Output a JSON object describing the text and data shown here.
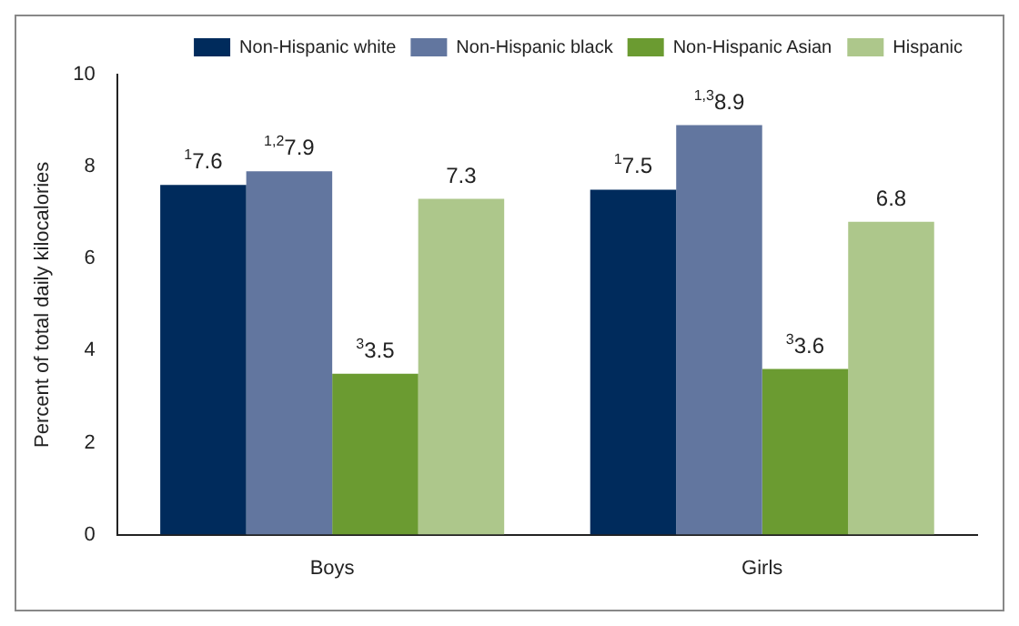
{
  "chart_data": {
    "type": "bar",
    "ylabel": "Percent of total daily kilocalories",
    "categories": [
      "Boys",
      "Girls"
    ],
    "series": [
      {
        "name": "Non-Hispanic white",
        "color": "#002b5c",
        "values": [
          7.6,
          7.5
        ],
        "value_labels": [
          "$^{1}$7.6",
          "$^{1}$7.5"
        ]
      },
      {
        "name": "Non-Hispanic black",
        "color": "#62769f",
        "values": [
          7.9,
          8.9
        ],
        "value_labels": [
          "$^{1,2}$7.9",
          "$^{1,3}$8.9"
        ]
      },
      {
        "name": "Non-Hispanic Asian",
        "color": "#6b9b31",
        "values": [
          3.5,
          3.6
        ],
        "value_labels": [
          "$^{3}$3.5",
          "$^{3}$3.6"
        ]
      },
      {
        "name": "Hispanic",
        "color": "#adc78b",
        "values": [
          7.3,
          6.8
        ],
        "value_labels": [
          "7.3",
          "6.8"
        ]
      }
    ],
    "ylim": [
      0,
      10
    ],
    "yticks": [
      0,
      2,
      4,
      6,
      8,
      10
    ],
    "grid": false,
    "legend": "top right"
  }
}
